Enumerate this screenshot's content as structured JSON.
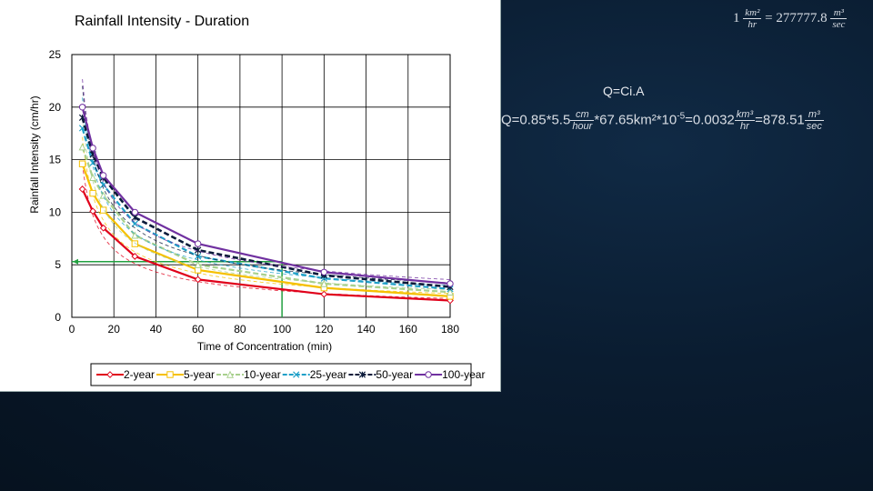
{
  "chart_data": {
    "type": "line",
    "title": "Rainfall Intensity - Duration",
    "xlabel": "Time of Concentration (min)",
    "ylabel": "Rainfall Intensity (cm/hr)",
    "xlim": [
      0,
      180
    ],
    "ylim": [
      0,
      25
    ],
    "xticks": [
      0,
      20,
      40,
      60,
      80,
      100,
      120,
      140,
      160,
      180
    ],
    "yticks": [
      0,
      5,
      10,
      15,
      20,
      25
    ],
    "grid": true,
    "legend_position": "bottom",
    "x": [
      5,
      10,
      15,
      30,
      60,
      120,
      180
    ],
    "series": [
      {
        "name": "2-year",
        "color": "#e0001a",
        "marker": "diamond",
        "dash": "solid",
        "values": [
          12.2,
          10.1,
          8.5,
          5.8,
          3.6,
          2.2,
          1.6
        ]
      },
      {
        "name": "5-year",
        "color": "#f5c000",
        "marker": "square",
        "dash": "solid",
        "values": [
          14.6,
          11.8,
          10.2,
          7.0,
          4.5,
          2.8,
          2.0
        ]
      },
      {
        "name": "10-year",
        "color": "#a8d08d",
        "marker": "triangle",
        "dash": "dash",
        "values": [
          16.2,
          13.3,
          11.6,
          7.8,
          5.0,
          3.2,
          2.4
        ]
      },
      {
        "name": "25-year",
        "color": "#1fa0c8",
        "marker": "x",
        "dash": "dash",
        "values": [
          18.0,
          14.7,
          12.6,
          8.9,
          5.8,
          3.7,
          2.7
        ]
      },
      {
        "name": "50-year",
        "color": "#0a1a3a",
        "marker": "star",
        "dash": "dash",
        "values": [
          19.0,
          15.5,
          13.3,
          9.5,
          6.4,
          4.0,
          2.9
        ]
      },
      {
        "name": "100-year",
        "color": "#7030a0",
        "marker": "circle",
        "dash": "solid",
        "values": [
          20.0,
          16.1,
          13.5,
          10.0,
          7.0,
          4.3,
          3.2
        ]
      }
    ],
    "annotation": {
      "color": "#22a040",
      "point_x": 100,
      "point_y": 5.3,
      "vertical_line_x": 100,
      "horizontal_line_y": 5.3
    }
  },
  "unit_conversion": {
    "lead": "1",
    "left_num": "km²",
    "left_den": "hr",
    "equals": "= 277777.8",
    "right_num": "m³",
    "right_den": "sec"
  },
  "q_label": "Q=Ci.A",
  "q_formula": {
    "prefix": "Q=0.85*5.5",
    "frac1_num": "cm",
    "frac1_den": "hour",
    "middle": "*67.65km²*10",
    "exp": "-5",
    "middle2": "=0.0032",
    "frac2_num": "km³",
    "frac2_den": "hr",
    "result": "=878.51",
    "frac3_num": "m³",
    "frac3_den": "sec"
  }
}
